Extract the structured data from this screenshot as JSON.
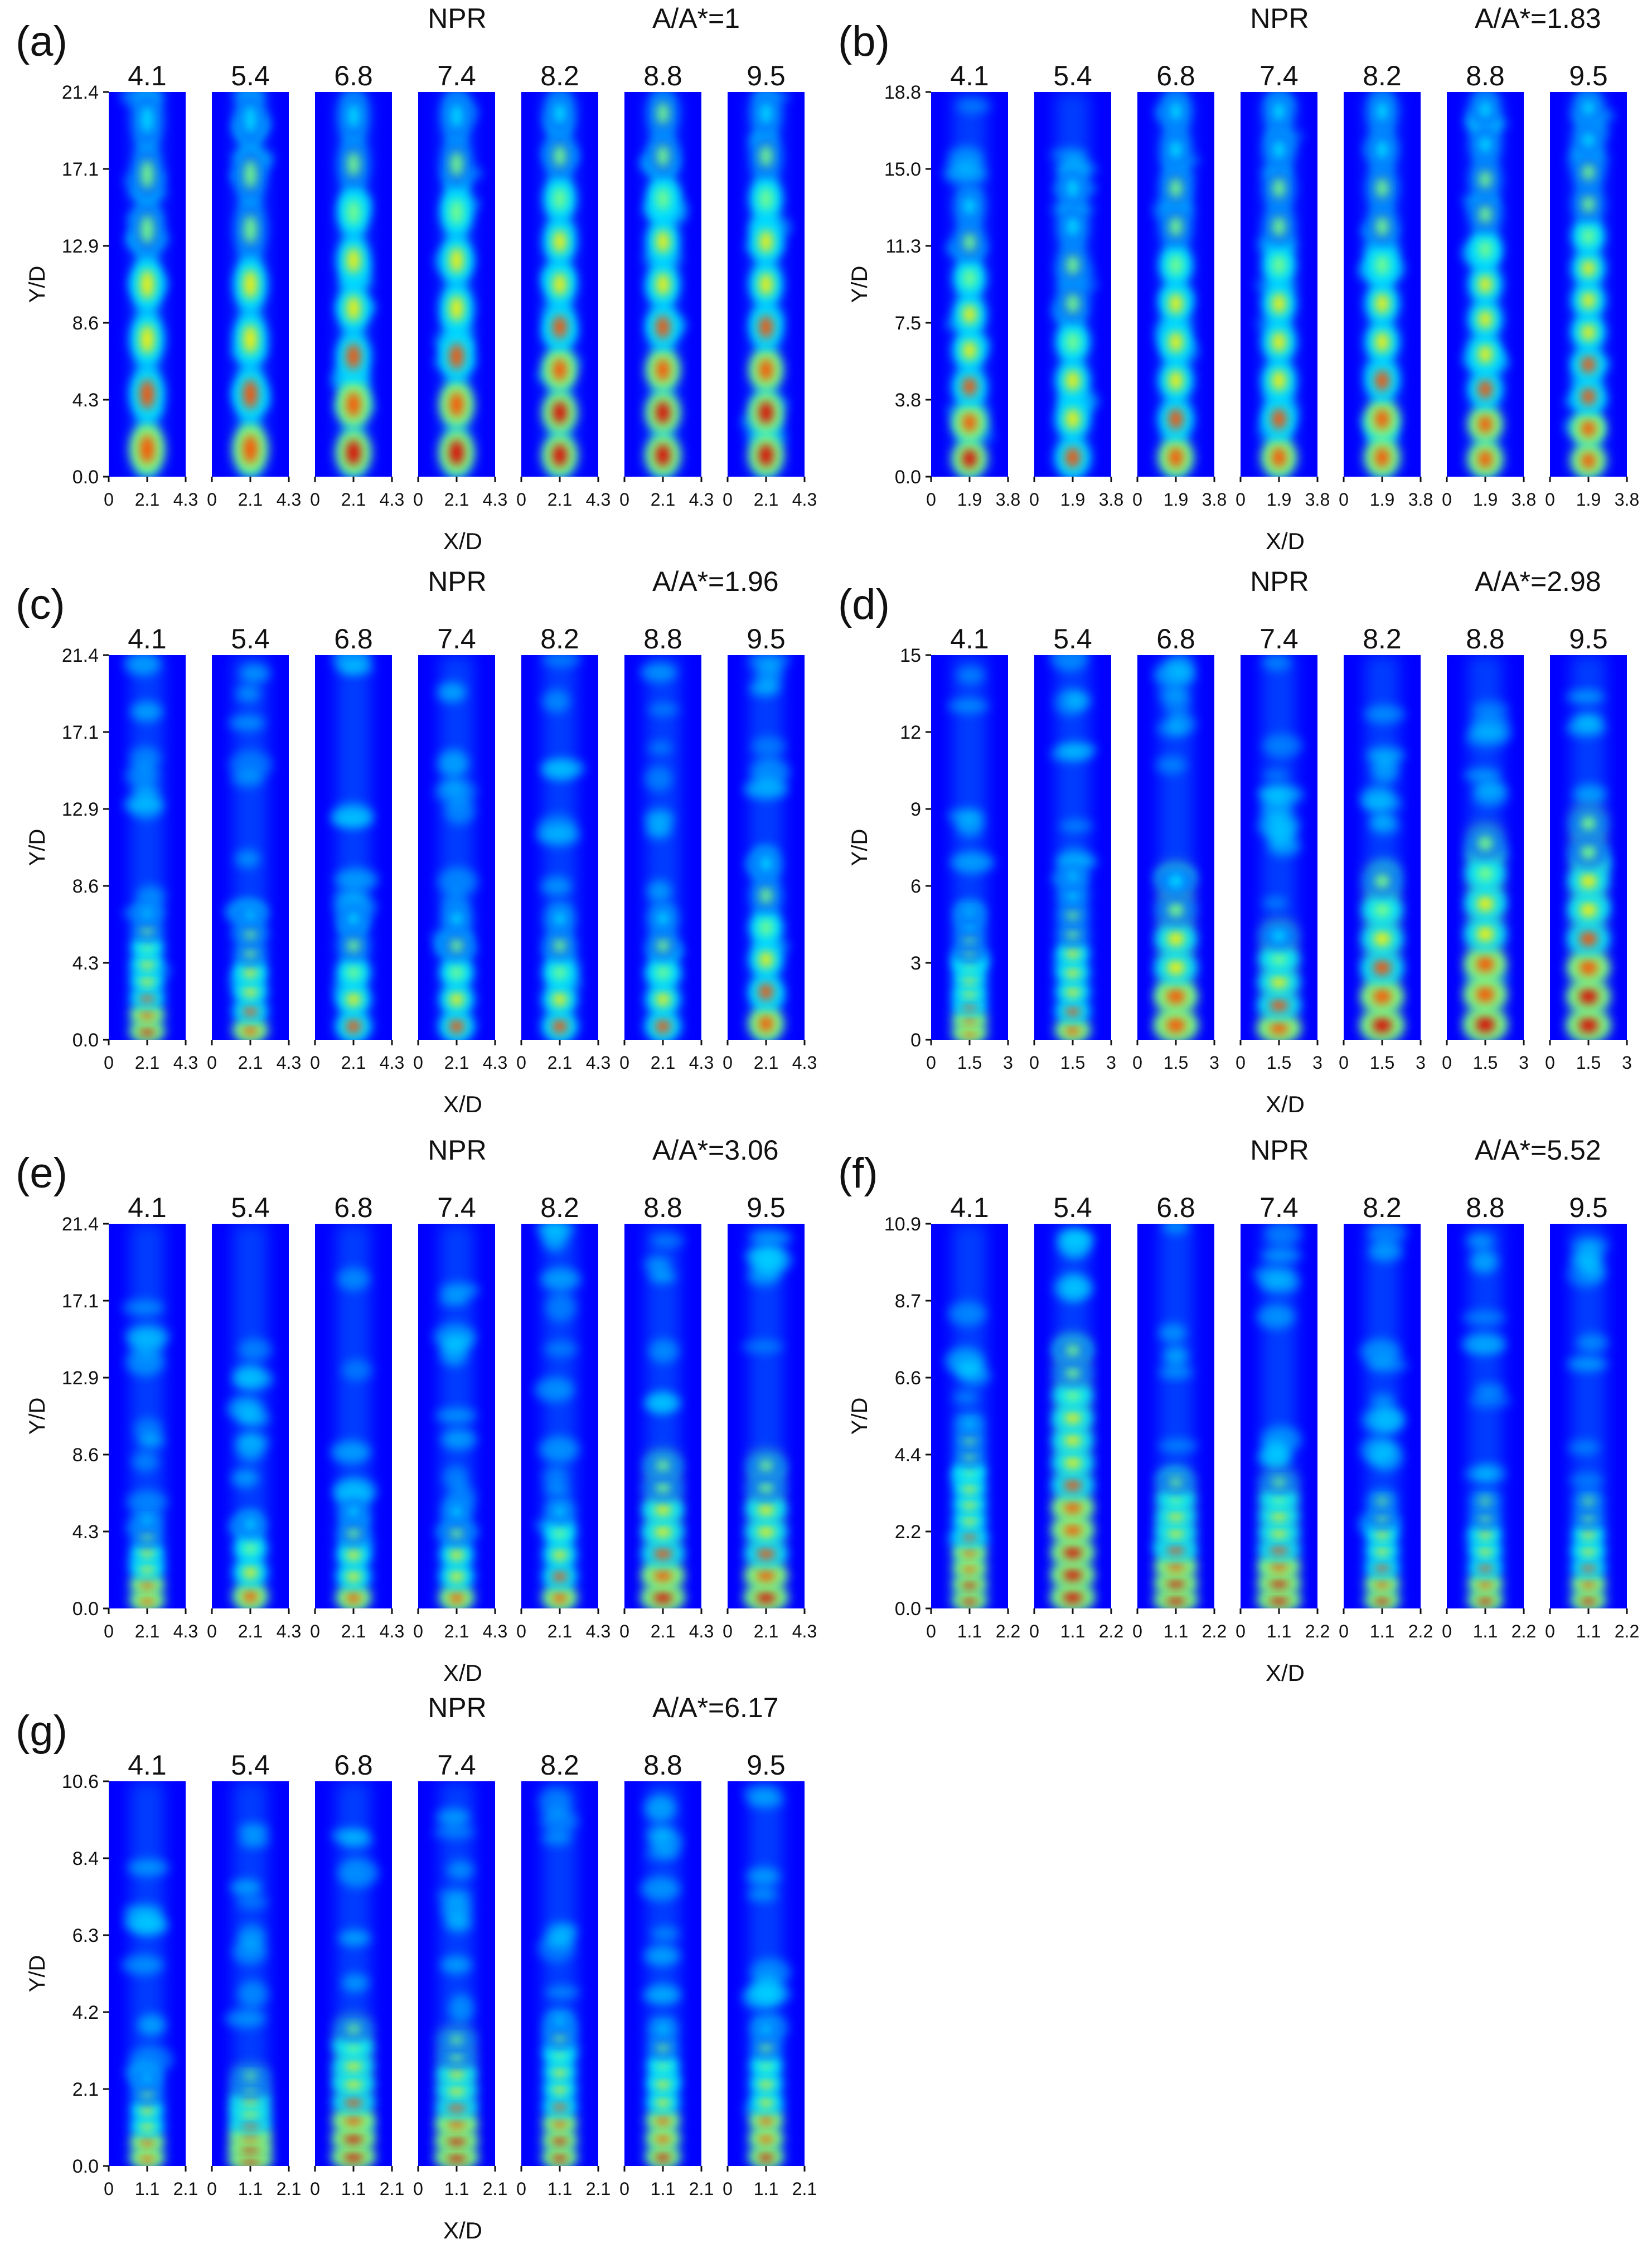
{
  "figure": {
    "npr_heading": "NPR",
    "x_axis_label": "X/D",
    "y_axis_label": "Y/D"
  },
  "colormap": [
    "#00007f",
    "#0000ff",
    "#0070ff",
    "#00dfff",
    "#7fff7f",
    "#ffef00",
    "#ff5000",
    "#df0000",
    "#7f0000"
  ],
  "chart_data": [
    {
      "type": "heatmap",
      "panel": "(a)",
      "area_ratio": "A/A*=1",
      "npr_values": [
        "4.1",
        "5.4",
        "6.8",
        "7.4",
        "8.2",
        "8.8",
        "9.5"
      ],
      "xlabel": "X/D",
      "ylabel": "Y/D",
      "y_ticks": [
        "0.0",
        "4.3",
        "8.6",
        "12.9",
        "17.1",
        "21.4"
      ],
      "x_ticks": [
        "0",
        "2.1",
        "4.3"
      ],
      "xlim": [
        0,
        4.3
      ],
      "ylim": [
        0,
        21.4
      ],
      "jets": [
        {
          "npr": "4.1",
          "cells": 7,
          "intensity": 0.8,
          "extent": 1.0,
          "style": "cells"
        },
        {
          "npr": "5.4",
          "cells": 7,
          "intensity": 0.78,
          "extent": 1.0,
          "style": "cells"
        },
        {
          "npr": "6.8",
          "cells": 8,
          "intensity": 0.85,
          "extent": 1.0,
          "style": "cells"
        },
        {
          "npr": "7.4",
          "cells": 8,
          "intensity": 0.85,
          "extent": 1.0,
          "style": "cells"
        },
        {
          "npr": "8.2",
          "cells": 9,
          "intensity": 0.9,
          "extent": 1.0,
          "style": "cells"
        },
        {
          "npr": "8.8",
          "cells": 9,
          "intensity": 0.92,
          "extent": 1.0,
          "style": "cells"
        },
        {
          "npr": "9.5",
          "cells": 9,
          "intensity": 0.9,
          "extent": 1.0,
          "style": "cells"
        }
      ]
    },
    {
      "type": "heatmap",
      "panel": "(b)",
      "area_ratio": "A/A*=1.83",
      "npr_values": [
        "4.1",
        "5.4",
        "6.8",
        "7.4",
        "8.2",
        "8.8",
        "9.5"
      ],
      "xlabel": "X/D",
      "ylabel": "Y/D",
      "y_ticks": [
        "0.0",
        "3.8",
        "7.5",
        "11.3",
        "15.0",
        "18.8"
      ],
      "x_ticks": [
        "0",
        "1.9",
        "3.8"
      ],
      "xlim": [
        0,
        3.8
      ],
      "ylim": [
        0,
        18.8
      ],
      "jets": [
        {
          "npr": "4.1",
          "cells": 8,
          "intensity": 0.85,
          "extent": 0.75,
          "style": "cells"
        },
        {
          "npr": "5.4",
          "cells": 8,
          "intensity": 0.72,
          "extent": 0.8,
          "style": "cells"
        },
        {
          "npr": "6.8",
          "cells": 10,
          "intensity": 0.78,
          "extent": 1.0,
          "style": "cells"
        },
        {
          "npr": "7.4",
          "cells": 10,
          "intensity": 0.78,
          "extent": 1.0,
          "style": "cells"
        },
        {
          "npr": "8.2",
          "cells": 10,
          "intensity": 0.8,
          "extent": 1.0,
          "style": "cells"
        },
        {
          "npr": "8.8",
          "cells": 11,
          "intensity": 0.8,
          "extent": 1.0,
          "style": "cells"
        },
        {
          "npr": "9.5",
          "cells": 12,
          "intensity": 0.82,
          "extent": 1.0,
          "style": "cells"
        }
      ]
    },
    {
      "type": "heatmap",
      "panel": "(c)",
      "area_ratio": "A/A*=1.96",
      "npr_values": [
        "4.1",
        "5.4",
        "6.8",
        "7.4",
        "8.2",
        "8.8",
        "9.5"
      ],
      "xlabel": "X/D",
      "ylabel": "Y/D",
      "y_ticks": [
        "0.0",
        "4.3",
        "8.6",
        "12.9",
        "17.1",
        "21.4"
      ],
      "x_ticks": [
        "0",
        "2.1",
        "4.3"
      ],
      "xlim": [
        0,
        4.3
      ],
      "ylim": [
        0,
        21.4
      ],
      "jets": [
        {
          "npr": "4.1",
          "cells": 8,
          "intensity": 0.85,
          "extent": 0.35,
          "style": "cells"
        },
        {
          "npr": "5.4",
          "cells": 7,
          "intensity": 0.8,
          "extent": 0.35,
          "style": "cells"
        },
        {
          "npr": "6.8",
          "cells": 5,
          "intensity": 0.75,
          "extent": 0.35,
          "style": "cells"
        },
        {
          "npr": "7.4",
          "cells": 5,
          "intensity": 0.75,
          "extent": 0.35,
          "style": "cells"
        },
        {
          "npr": "8.2",
          "cells": 5,
          "intensity": 0.75,
          "extent": 0.35,
          "style": "cells"
        },
        {
          "npr": "8.8",
          "cells": 5,
          "intensity": 0.75,
          "extent": 0.35,
          "style": "cells"
        },
        {
          "npr": "9.5",
          "cells": 6,
          "intensity": 0.82,
          "extent": 0.5,
          "style": "cells"
        }
      ]
    },
    {
      "type": "heatmap",
      "panel": "(d)",
      "area_ratio": "A/A*=2.98",
      "npr_values": [
        "4.1",
        "5.4",
        "6.8",
        "7.4",
        "8.2",
        "8.8",
        "9.5"
      ],
      "xlabel": "X/D",
      "ylabel": "Y/D",
      "y_ticks": [
        "0",
        "3",
        "6",
        "9",
        "12",
        "15"
      ],
      "x_ticks": [
        "0",
        "1.5",
        "3"
      ],
      "xlim": [
        0,
        3
      ],
      "ylim": [
        0,
        15
      ],
      "jets": [
        {
          "npr": "4.1",
          "cells": 10,
          "intensity": 0.8,
          "extent": 0.35,
          "style": "cells"
        },
        {
          "npr": "5.4",
          "cells": 9,
          "intensity": 0.78,
          "extent": 0.45,
          "style": "cells"
        },
        {
          "npr": "6.8",
          "cells": 6,
          "intensity": 0.85,
          "extent": 0.45,
          "style": "smear"
        },
        {
          "npr": "7.4",
          "cells": 5,
          "intensity": 0.85,
          "extent": 0.3,
          "style": "smear"
        },
        {
          "npr": "8.2",
          "cells": 6,
          "intensity": 0.9,
          "extent": 0.45,
          "style": "smear"
        },
        {
          "npr": "8.8",
          "cells": 7,
          "intensity": 0.92,
          "extent": 0.55,
          "style": "smear"
        },
        {
          "npr": "9.5",
          "cells": 8,
          "intensity": 0.92,
          "extent": 0.6,
          "style": "smear"
        }
      ]
    },
    {
      "type": "heatmap",
      "panel": "(e)",
      "area_ratio": "A/A*=3.06",
      "npr_values": [
        "4.1",
        "5.4",
        "6.8",
        "7.4",
        "8.2",
        "8.8",
        "9.5"
      ],
      "xlabel": "X/D",
      "ylabel": "Y/D",
      "y_ticks": [
        "0.0",
        "4.3",
        "8.6",
        "12.9",
        "17.1",
        "21.4"
      ],
      "x_ticks": [
        "0",
        "2.1",
        "4.3"
      ],
      "xlim": [
        0,
        4.3
      ],
      "ylim": [
        0,
        21.4
      ],
      "jets": [
        {
          "npr": "4.1",
          "cells": 6,
          "intensity": 0.85,
          "extent": 0.25,
          "style": "cells"
        },
        {
          "npr": "5.4",
          "cells": 4,
          "intensity": 0.8,
          "extent": 0.25,
          "style": "cells"
        },
        {
          "npr": "6.8",
          "cells": 5,
          "intensity": 0.82,
          "extent": 0.28,
          "style": "cells"
        },
        {
          "npr": "7.4",
          "cells": 5,
          "intensity": 0.82,
          "extent": 0.28,
          "style": "cells"
        },
        {
          "npr": "8.2",
          "cells": 5,
          "intensity": 0.85,
          "extent": 0.28,
          "style": "cells"
        },
        {
          "npr": "8.8",
          "cells": 7,
          "intensity": 0.9,
          "extent": 0.4,
          "style": "smear"
        },
        {
          "npr": "9.5",
          "cells": 7,
          "intensity": 0.9,
          "extent": 0.4,
          "style": "smear"
        }
      ]
    },
    {
      "type": "heatmap",
      "panel": "(f)",
      "area_ratio": "A/A*=5.52",
      "npr_values": [
        "4.1",
        "5.4",
        "6.8",
        "7.4",
        "8.2",
        "8.8",
        "9.5"
      ],
      "xlabel": "X/D",
      "ylabel": "Y/D",
      "y_ticks": [
        "0.0",
        "2.2",
        "4.4",
        "6.6",
        "8.7",
        "10.9"
      ],
      "x_ticks": [
        "0",
        "1.1",
        "2.2"
      ],
      "xlim": [
        0,
        2.2
      ],
      "ylim": [
        0,
        10.9
      ],
      "jets": [
        {
          "npr": "4.1",
          "cells": 12,
          "intensity": 0.88,
          "extent": 0.5,
          "style": "cells"
        },
        {
          "npr": "5.4",
          "cells": 12,
          "intensity": 0.95,
          "extent": 0.7,
          "style": "smear"
        },
        {
          "npr": "6.8",
          "cells": 8,
          "intensity": 0.95,
          "extent": 0.35,
          "style": "smear"
        },
        {
          "npr": "7.4",
          "cells": 8,
          "intensity": 0.95,
          "extent": 0.35,
          "style": "smear"
        },
        {
          "npr": "8.2",
          "cells": 7,
          "intensity": 0.9,
          "extent": 0.3,
          "style": "cells"
        },
        {
          "npr": "8.8",
          "cells": 7,
          "intensity": 0.9,
          "extent": 0.3,
          "style": "cells"
        },
        {
          "npr": "9.5",
          "cells": 7,
          "intensity": 0.9,
          "extent": 0.3,
          "style": "cells"
        }
      ]
    },
    {
      "type": "heatmap",
      "panel": "(g)",
      "area_ratio": "A/A*=6.17",
      "npr_values": [
        "4.1",
        "5.4",
        "6.8",
        "7.4",
        "8.2",
        "8.8",
        "9.5"
      ],
      "xlabel": "X/D",
      "ylabel": "Y/D",
      "y_ticks": [
        "0.0",
        "2.1",
        "4.2",
        "6.3",
        "8.4",
        "10.6"
      ],
      "x_ticks": [
        "0",
        "1.1",
        "2.1"
      ],
      "xlim": [
        0,
        2.1
      ],
      "ylim": [
        0,
        10.6
      ],
      "jets": [
        {
          "npr": "4.1",
          "cells": 6,
          "intensity": 0.85,
          "extent": 0.25,
          "style": "cells"
        },
        {
          "npr": "5.4",
          "cells": 8,
          "intensity": 0.92,
          "extent": 0.25,
          "style": "smear"
        },
        {
          "npr": "6.8",
          "cells": 8,
          "intensity": 0.95,
          "extent": 0.38,
          "style": "smear"
        },
        {
          "npr": "7.4",
          "cells": 8,
          "intensity": 0.92,
          "extent": 0.35,
          "style": "smear"
        },
        {
          "npr": "8.2",
          "cells": 9,
          "intensity": 0.9,
          "extent": 0.4,
          "style": "cells"
        },
        {
          "npr": "8.8",
          "cells": 8,
          "intensity": 0.9,
          "extent": 0.38,
          "style": "cells"
        },
        {
          "npr": "9.5",
          "cells": 8,
          "intensity": 0.9,
          "extent": 0.38,
          "style": "cells"
        }
      ]
    }
  ]
}
